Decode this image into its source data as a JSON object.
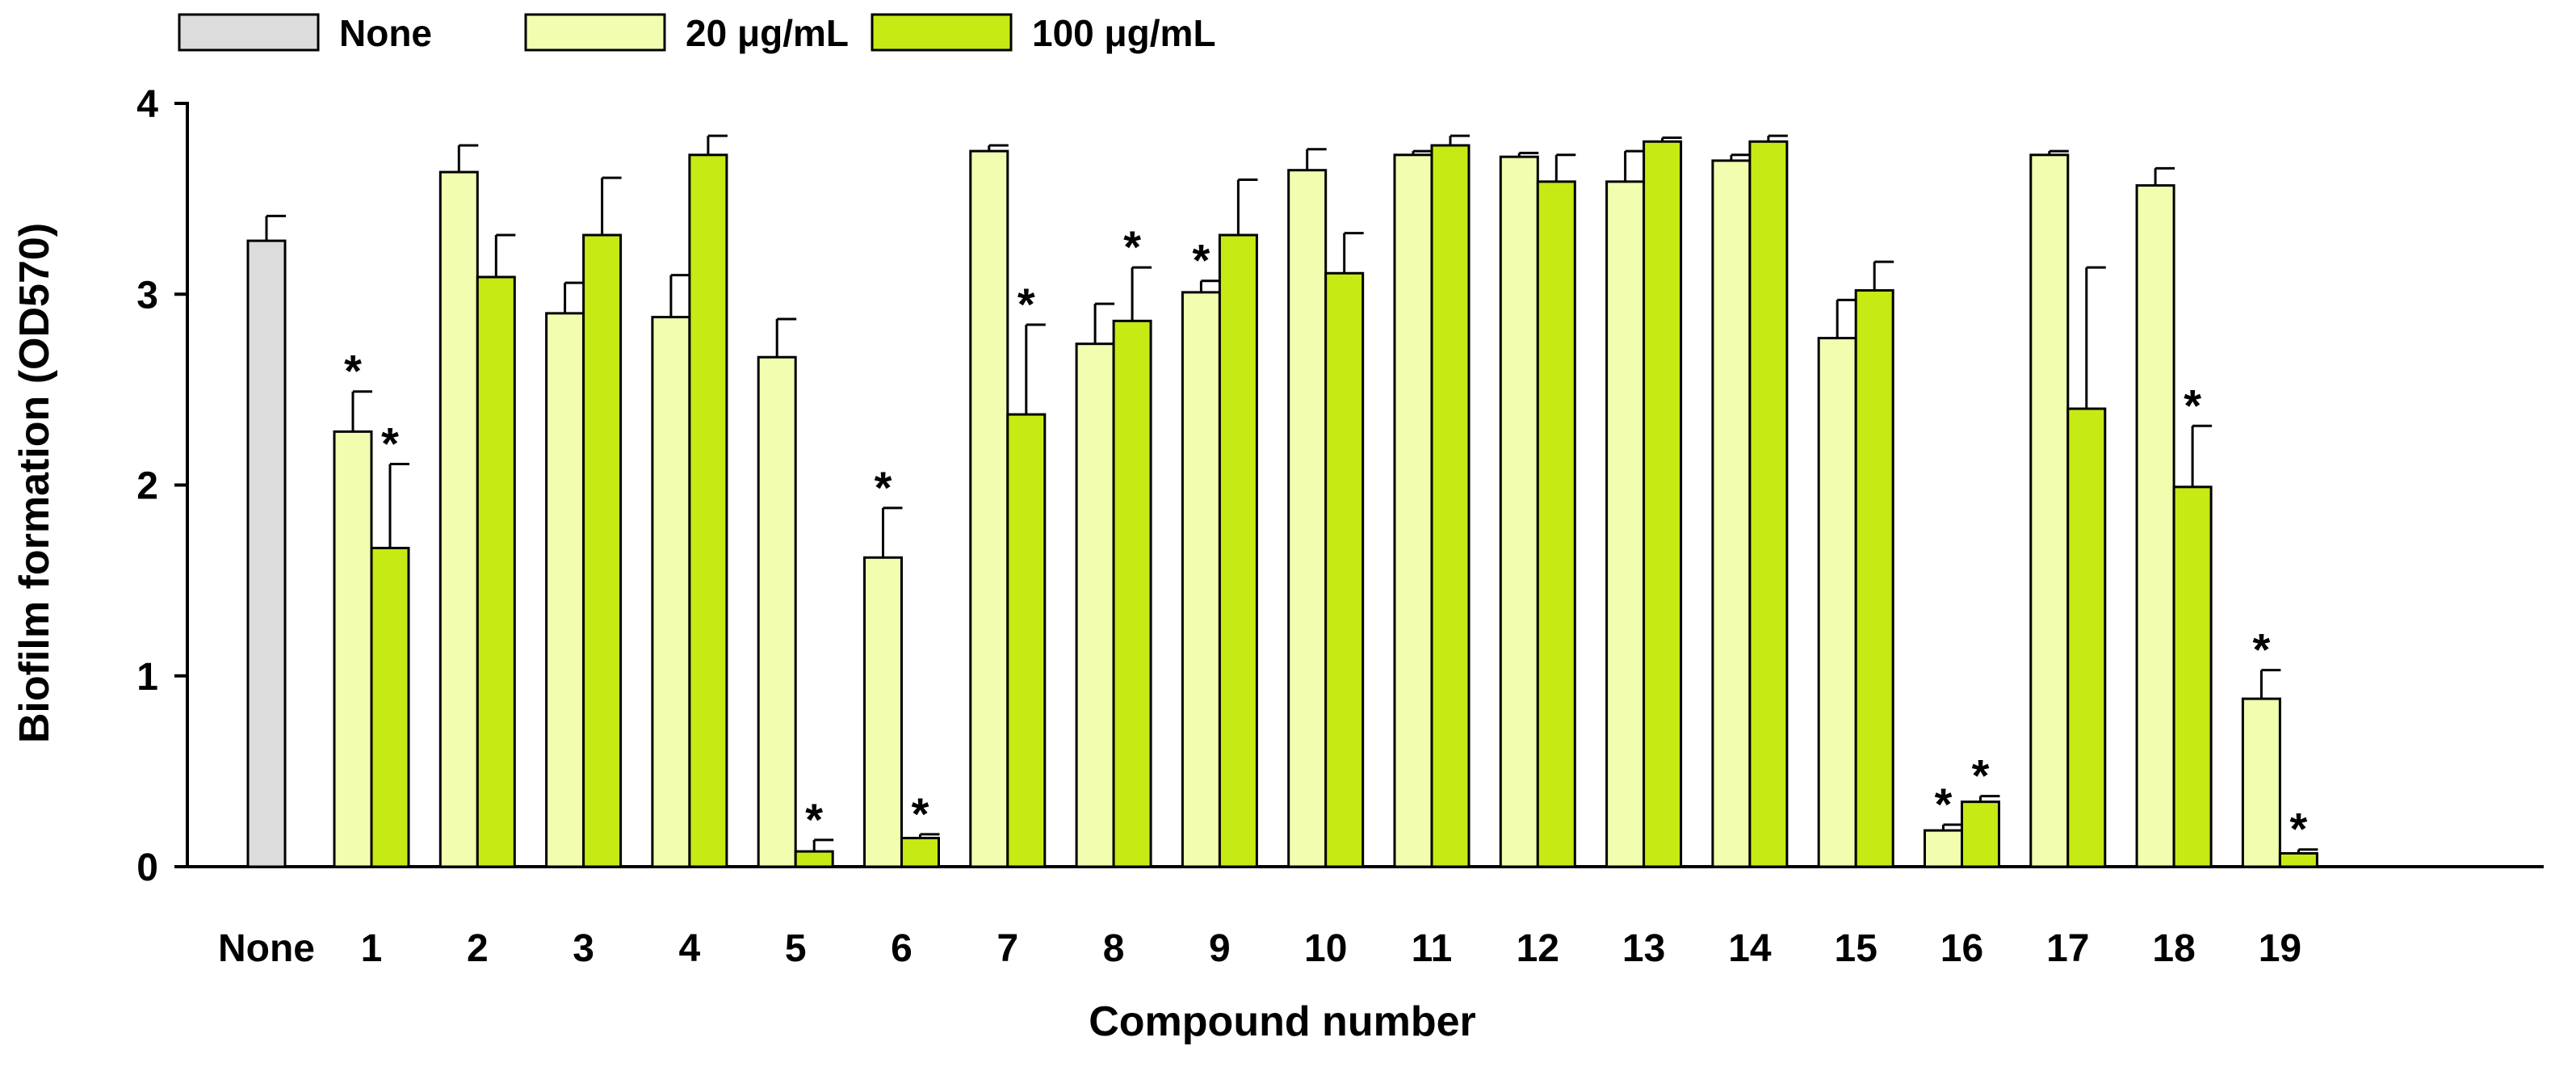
{
  "chart_data": {
    "type": "bar",
    "title": "",
    "xlabel": "Compound number",
    "ylabel": "Biofilm formation (OD570)",
    "ylim": [
      0,
      4
    ],
    "yticks": [
      "0",
      "1",
      "2",
      "3",
      "4"
    ],
    "grid": false,
    "legend_position": "top-left",
    "significance_marker": "*",
    "colors": {
      "none": "#dcdcdc",
      "low": "#f3fdb0",
      "high": "#c6ea14",
      "outline": "#000000"
    },
    "legend": [
      {
        "name": "None",
        "color_key": "none"
      },
      {
        "name": "20 μg/mL",
        "color_key": "low"
      },
      {
        "name": "100 μg/mL",
        "color_key": "high"
      }
    ],
    "control": {
      "category": "None",
      "series": "None",
      "value": 3.28,
      "error": 0.13
    },
    "categories": [
      "1",
      "2",
      "3",
      "4",
      "5",
      "6",
      "7",
      "8",
      "9",
      "10",
      "11",
      "12",
      "13",
      "14",
      "15",
      "16",
      "17",
      "18",
      "19"
    ],
    "series": [
      {
        "name": "20 μg/mL",
        "color_key": "low",
        "values": [
          2.28,
          3.64,
          2.9,
          2.88,
          2.67,
          1.62,
          3.75,
          2.74,
          3.01,
          3.65,
          3.73,
          3.72,
          3.59,
          3.7,
          2.77,
          0.19,
          3.73,
          3.57,
          0.88
        ],
        "errors": [
          0.21,
          0.14,
          0.16,
          0.22,
          0.2,
          0.26,
          0.03,
          0.21,
          0.06,
          0.11,
          0.02,
          0.02,
          0.16,
          0.03,
          0.2,
          0.03,
          0.02,
          0.09,
          0.15
        ],
        "significant": [
          true,
          false,
          false,
          false,
          false,
          true,
          false,
          false,
          true,
          false,
          false,
          false,
          false,
          false,
          false,
          true,
          false,
          false,
          true
        ]
      },
      {
        "name": "100 μg/mL",
        "color_key": "high",
        "values": [
          1.67,
          3.09,
          3.31,
          3.73,
          0.08,
          0.15,
          2.37,
          2.86,
          3.31,
          3.11,
          3.78,
          3.59,
          3.8,
          3.8,
          3.02,
          0.34,
          2.4,
          1.99,
          0.07
        ],
        "errors": [
          0.44,
          0.22,
          0.3,
          0.1,
          0.06,
          0.02,
          0.47,
          0.28,
          0.29,
          0.21,
          0.05,
          0.14,
          0.02,
          0.03,
          0.15,
          0.03,
          0.74,
          0.32,
          0.02
        ],
        "significant": [
          true,
          false,
          false,
          false,
          true,
          true,
          true,
          true,
          false,
          false,
          false,
          false,
          false,
          false,
          false,
          true,
          false,
          true,
          true
        ]
      }
    ]
  }
}
